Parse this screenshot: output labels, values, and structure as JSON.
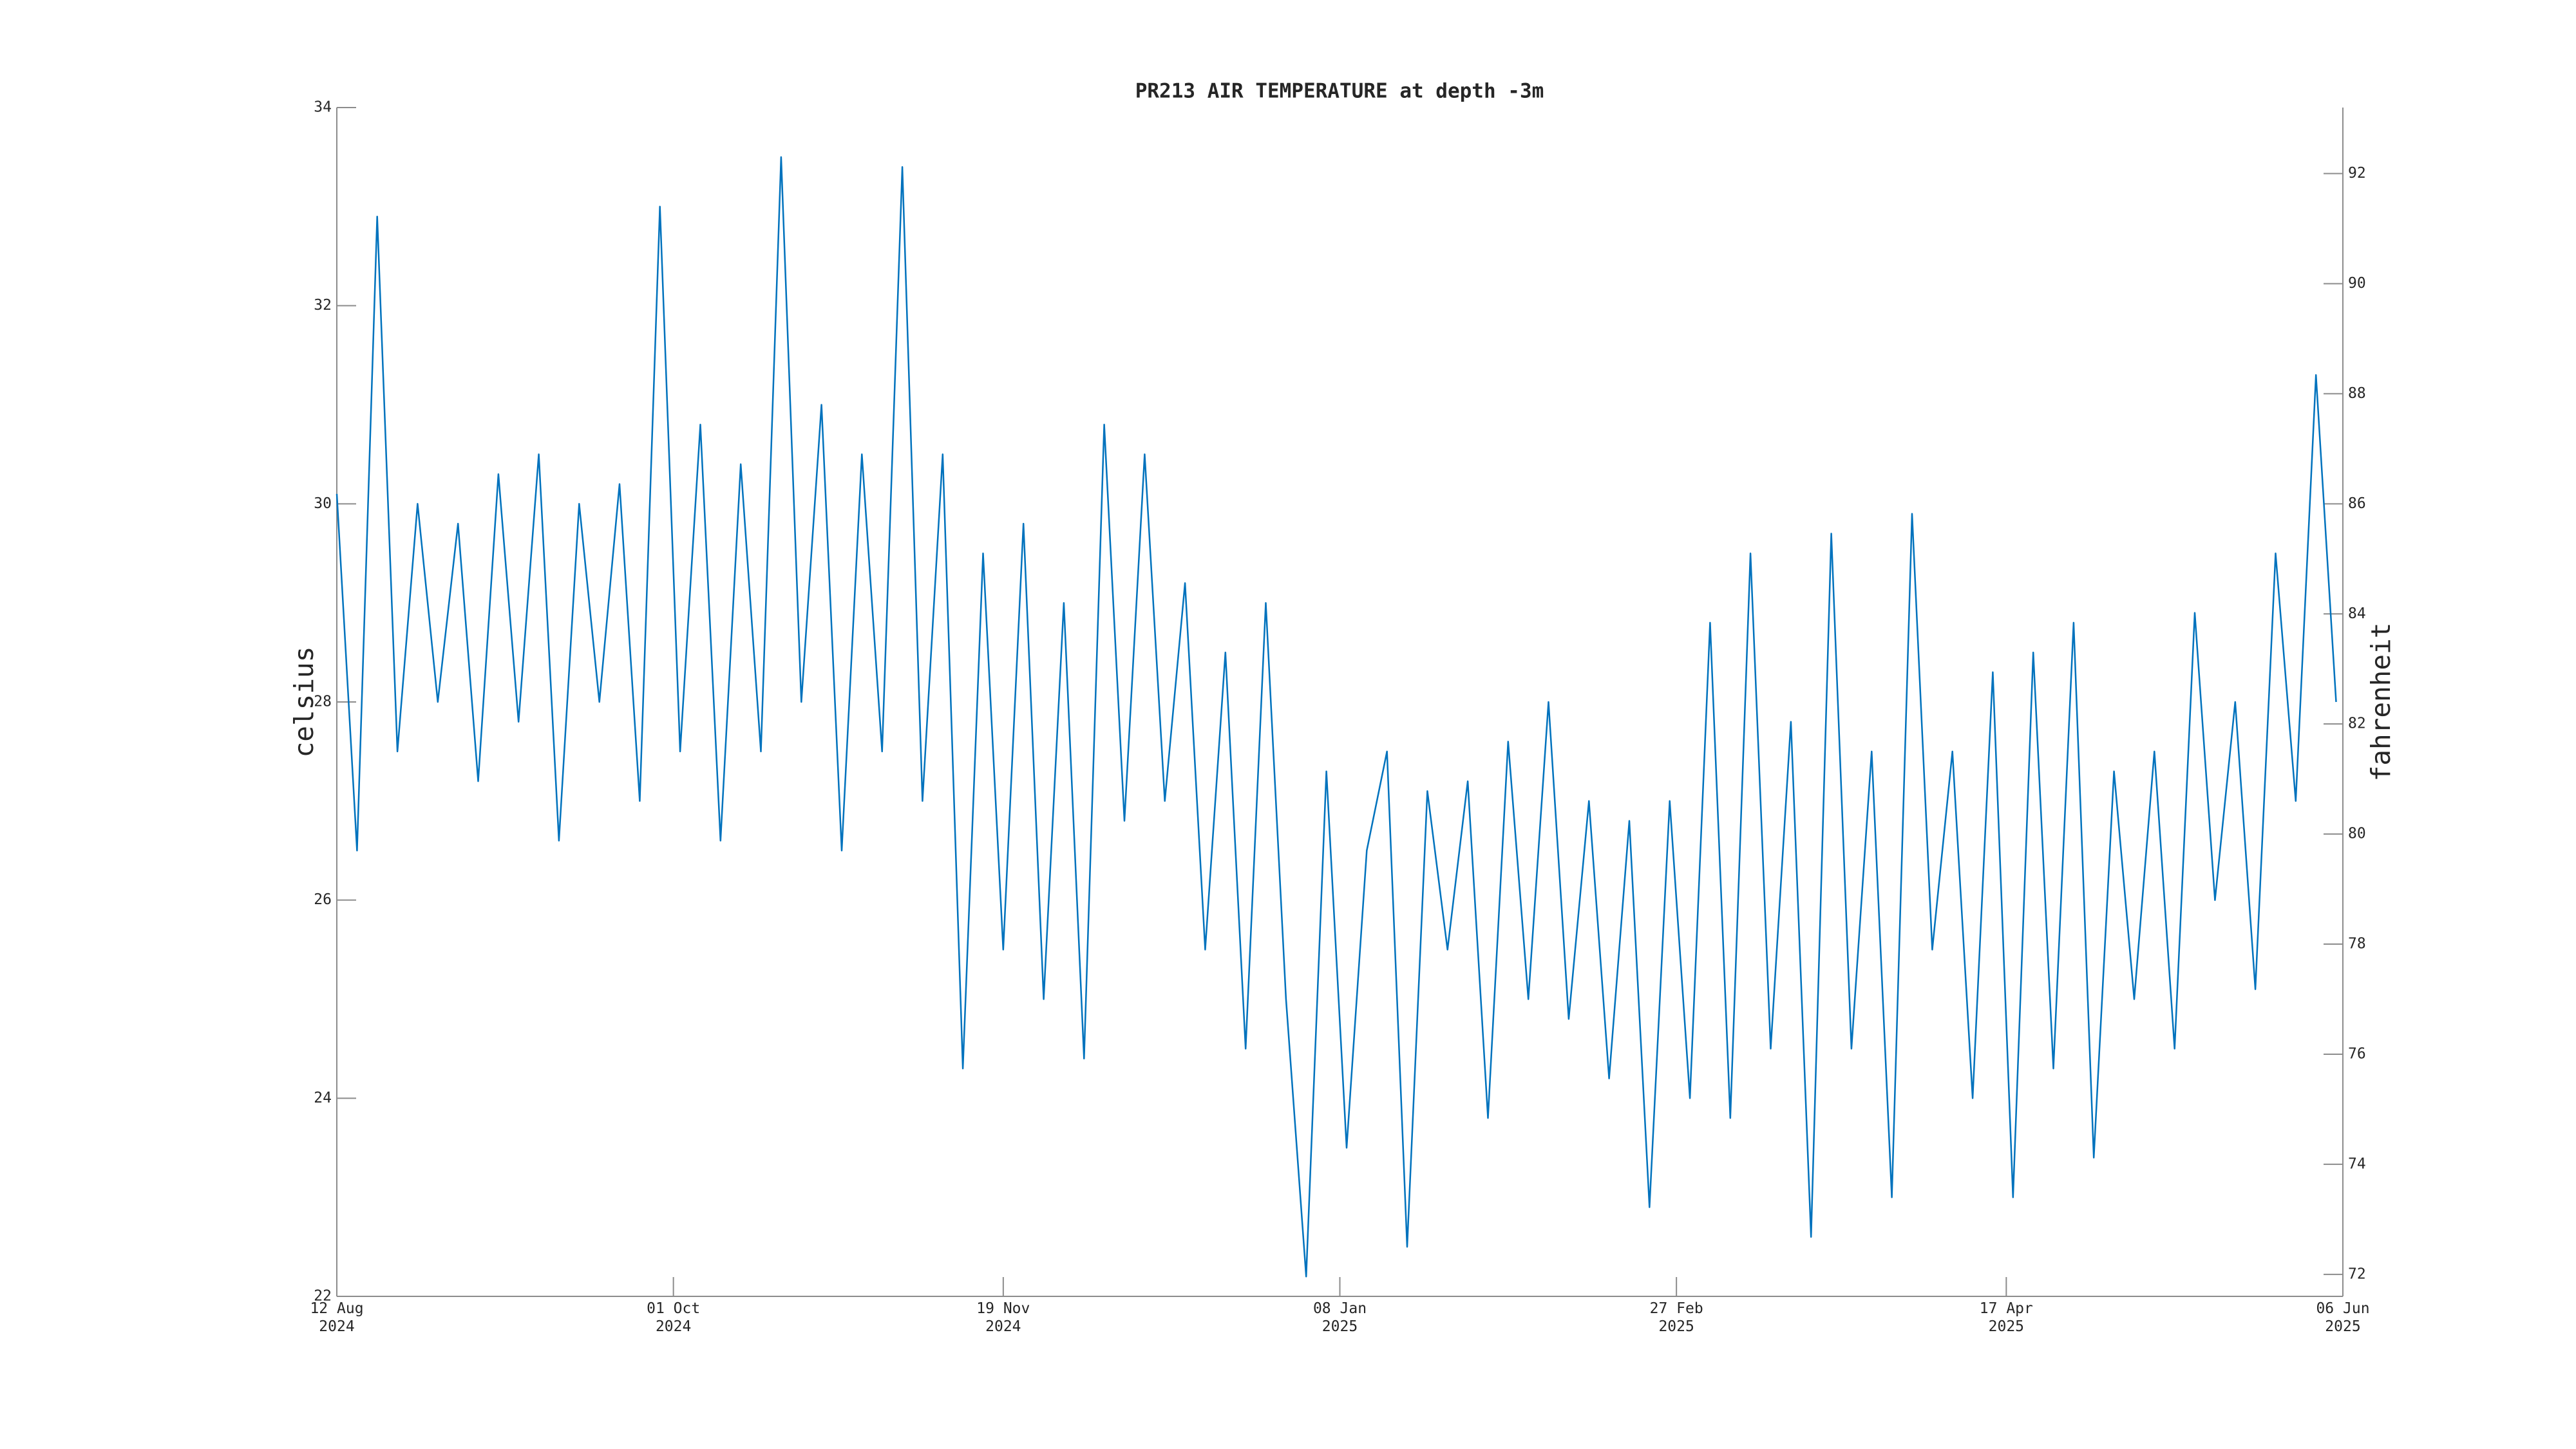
{
  "chart_data": {
    "type": "line",
    "title": "PR213 AIR TEMPERATURE at depth -3m",
    "y_label": "celsius",
    "y2_label": "fahrenheit",
    "xlim": [
      "2024-08-12",
      "2025-06-06"
    ],
    "xticks": [
      {
        "value": "2024-08-12",
        "label": [
          "12 Aug",
          "2024"
        ]
      },
      {
        "value": "2024-10-01",
        "label": [
          "01 Oct",
          "2024"
        ]
      },
      {
        "value": "2024-11-19",
        "label": [
          "19 Nov",
          "2024"
        ]
      },
      {
        "value": "2025-01-08",
        "label": [
          "08 Jan",
          "2025"
        ]
      },
      {
        "value": "2025-02-27",
        "label": [
          "27 Feb",
          "2025"
        ]
      },
      {
        "value": "2025-04-17",
        "label": [
          "17 Apr",
          "2025"
        ]
      },
      {
        "value": "2025-06-06",
        "label": [
          "06 Jun",
          "2025"
        ]
      }
    ],
    "ylim": [
      22,
      34
    ],
    "yticks": [
      22,
      24,
      26,
      28,
      30,
      32,
      34
    ],
    "y2lim": [
      71.6,
      93.2
    ],
    "y2ticks": [
      72,
      74,
      76,
      78,
      80,
      82,
      84,
      86,
      88,
      90,
      92
    ],
    "series": [
      {
        "color": "#0072bd",
        "x": [
          "2024-08-12",
          "2024-08-15",
          "2024-08-18",
          "2024-08-21",
          "2024-08-24",
          "2024-08-27",
          "2024-08-30",
          "2024-09-02",
          "2024-09-05",
          "2024-09-08",
          "2024-09-11",
          "2024-09-14",
          "2024-09-17",
          "2024-09-20",
          "2024-09-23",
          "2024-09-26",
          "2024-09-29",
          "2024-10-02",
          "2024-10-05",
          "2024-10-08",
          "2024-10-11",
          "2024-10-14",
          "2024-10-17",
          "2024-10-20",
          "2024-10-23",
          "2024-10-26",
          "2024-10-29",
          "2024-11-01",
          "2024-11-04",
          "2024-11-07",
          "2024-11-10",
          "2024-11-13",
          "2024-11-16",
          "2024-11-19",
          "2024-11-22",
          "2024-11-25",
          "2024-11-28",
          "2024-12-01",
          "2024-12-04",
          "2024-12-07",
          "2024-12-10",
          "2024-12-13",
          "2024-12-16",
          "2024-12-19",
          "2024-12-22",
          "2024-12-25",
          "2024-12-28",
          "2024-12-31",
          "2025-01-03",
          "2025-01-06",
          "2025-01-09",
          "2025-01-12",
          "2025-01-15",
          "2025-01-18",
          "2025-01-21",
          "2025-01-24",
          "2025-01-27",
          "2025-01-30",
          "2025-02-02",
          "2025-02-05",
          "2025-02-08",
          "2025-02-11",
          "2025-02-14",
          "2025-02-17",
          "2025-02-20",
          "2025-02-23",
          "2025-02-26",
          "2025-03-01",
          "2025-03-04",
          "2025-03-07",
          "2025-03-10",
          "2025-03-13",
          "2025-03-16",
          "2025-03-19",
          "2025-03-22",
          "2025-03-25",
          "2025-03-28",
          "2025-03-31",
          "2025-04-03",
          "2025-04-06",
          "2025-04-09",
          "2025-04-12",
          "2025-04-15",
          "2025-04-18",
          "2025-04-21",
          "2025-04-24",
          "2025-04-27",
          "2025-04-30",
          "2025-05-03",
          "2025-05-06",
          "2025-05-09",
          "2025-05-12",
          "2025-05-15",
          "2025-05-18",
          "2025-05-21",
          "2025-05-24",
          "2025-05-27",
          "2025-05-30",
          "2025-06-02",
          "2025-06-05"
        ],
        "values": [
          30.1,
          26.5,
          32.9,
          27.5,
          30.0,
          28.0,
          29.8,
          27.2,
          30.3,
          27.8,
          30.5,
          26.6,
          30.0,
          28.0,
          30.2,
          27.0,
          33.0,
          27.5,
          30.8,
          26.6,
          30.4,
          27.5,
          33.5,
          28.0,
          31.0,
          26.5,
          30.5,
          27.5,
          33.4,
          27.0,
          30.5,
          24.3,
          29.5,
          25.5,
          29.8,
          25.0,
          29.0,
          24.4,
          30.8,
          26.8,
          30.5,
          27.0,
          29.2,
          25.5,
          28.5,
          24.5,
          29.0,
          25.0,
          22.2,
          27.3,
          23.5,
          26.5,
          27.5,
          22.5,
          27.1,
          25.5,
          27.2,
          23.8,
          27.6,
          25.0,
          28.0,
          24.8,
          27.0,
          24.2,
          26.8,
          22.9,
          27.0,
          24.0,
          28.8,
          23.8,
          29.5,
          24.5,
          27.8,
          22.6,
          29.7,
          24.5,
          27.5,
          23.0,
          29.9,
          25.5,
          27.5,
          24.0,
          28.3,
          23.0,
          28.5,
          24.3,
          28.8,
          23.4,
          27.3,
          25.0,
          27.5,
          24.5,
          28.9,
          26.0,
          28.0,
          25.1,
          29.5,
          27.0,
          31.3,
          28.0
        ]
      }
    ]
  }
}
